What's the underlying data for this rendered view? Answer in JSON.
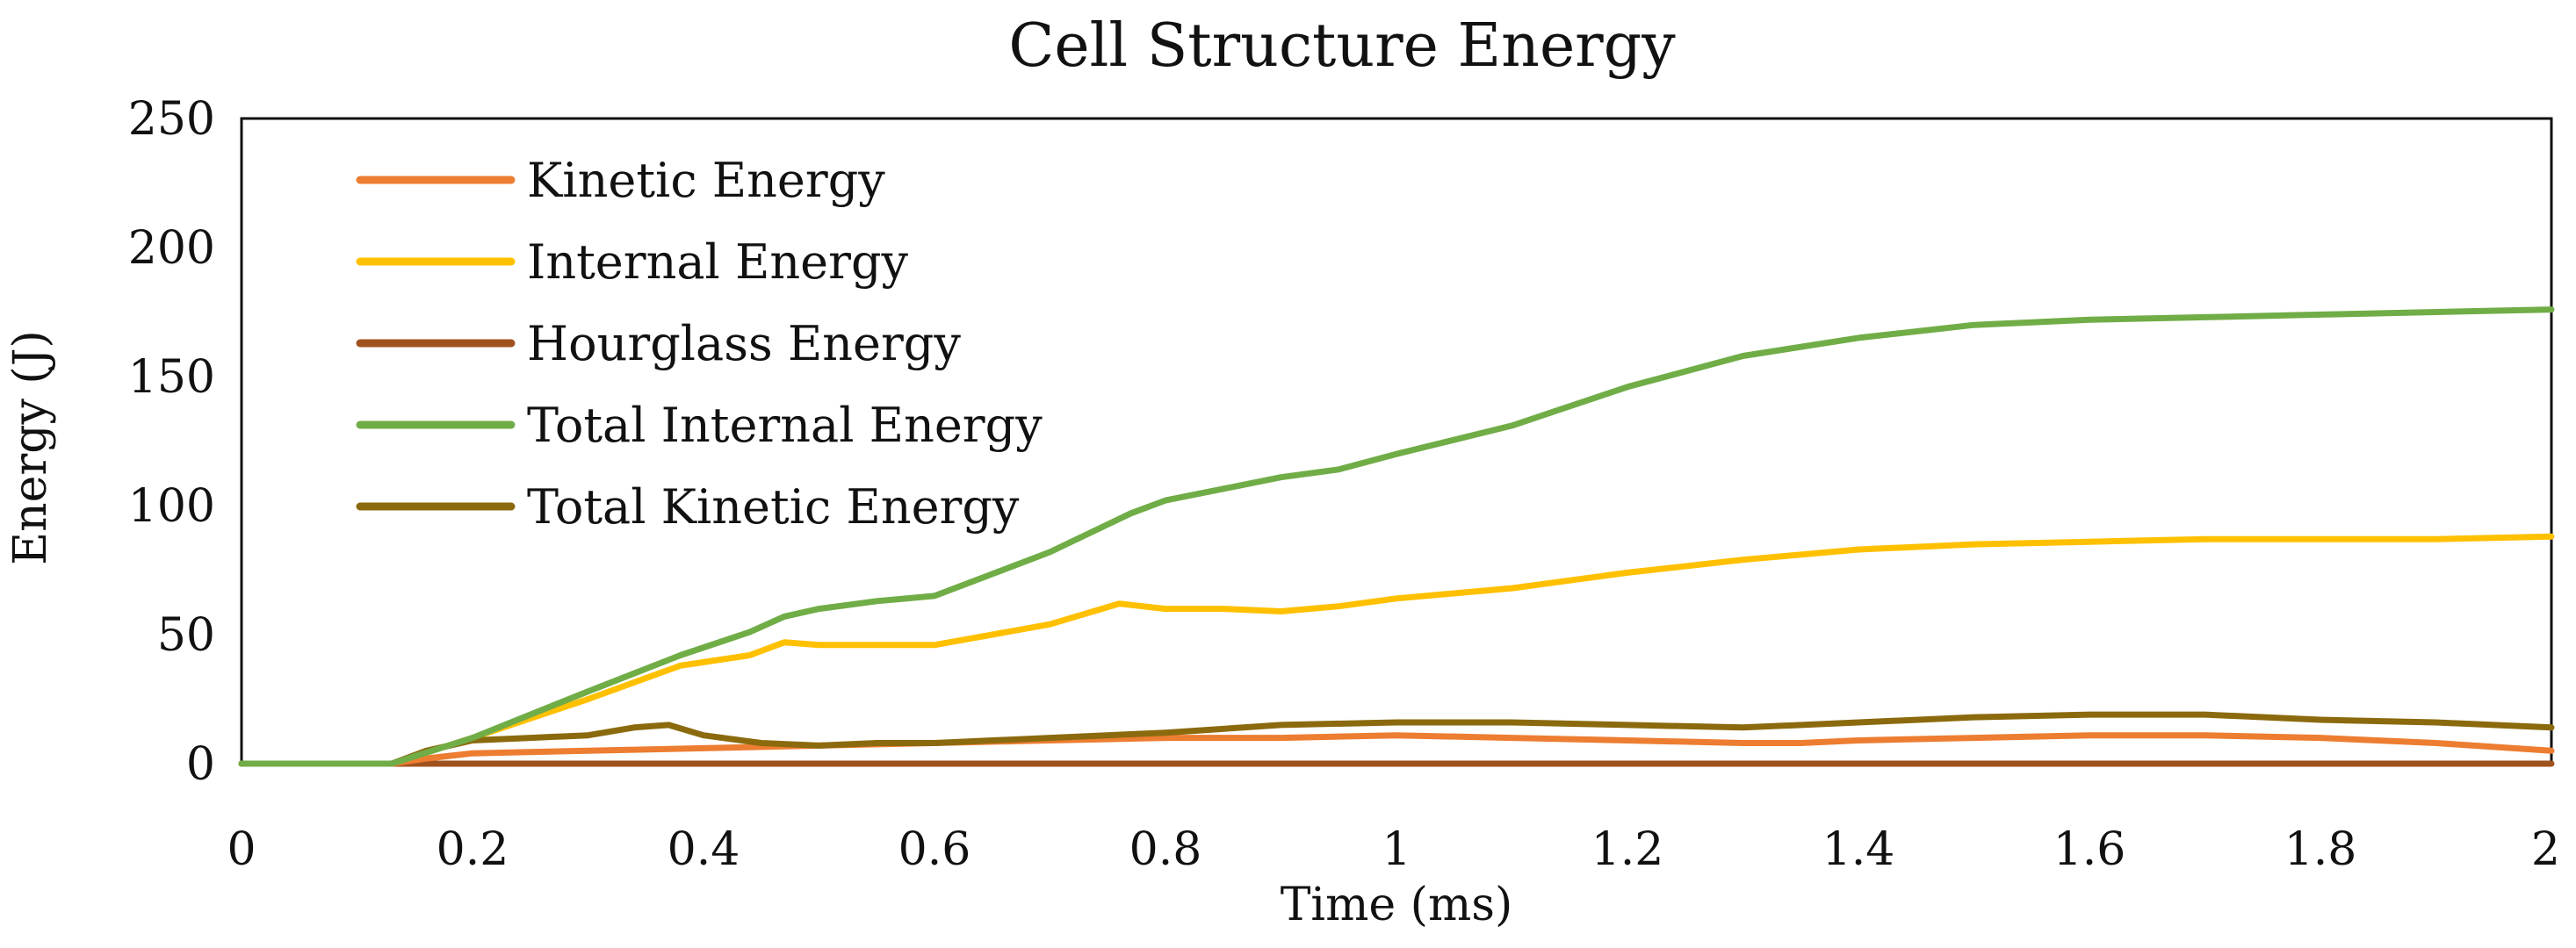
{
  "chart_data": {
    "type": "line",
    "title": "Cell Structure Energy",
    "xlabel": "Time (ms)",
    "ylabel": "Energy (J)",
    "xlim": [
      0,
      2
    ],
    "ylim": [
      0,
      250
    ],
    "x_ticks": [
      "0",
      "0.2",
      "0.4",
      "0.6",
      "0.8",
      "1",
      "1.2",
      "1.4",
      "1.6",
      "1.8",
      "2"
    ],
    "y_ticks": [
      "0",
      "50",
      "100",
      "150",
      "200",
      "250"
    ],
    "legend_position": "top-left",
    "grid": false,
    "series": [
      {
        "name": "Kinetic Energy",
        "color": "#ED7D31",
        "x": [
          0,
          0.13,
          0.16,
          0.2,
          0.3,
          0.4,
          0.5,
          0.6,
          0.7,
          0.8,
          0.9,
          1.0,
          1.1,
          1.2,
          1.3,
          1.35,
          1.4,
          1.5,
          1.6,
          1.65,
          1.7,
          1.8,
          1.9,
          2.0
        ],
        "y": [
          0,
          0,
          2,
          4,
          5,
          6,
          7,
          8,
          9,
          10,
          10,
          11,
          10,
          9,
          8,
          8,
          9,
          10,
          11,
          11,
          11,
          10,
          8,
          5
        ]
      },
      {
        "name": "Internal Energy",
        "color": "#FFC000",
        "x": [
          0,
          0.13,
          0.2,
          0.3,
          0.38,
          0.44,
          0.47,
          0.5,
          0.55,
          0.6,
          0.7,
          0.76,
          0.8,
          0.85,
          0.9,
          0.95,
          1.0,
          1.1,
          1.2,
          1.3,
          1.4,
          1.5,
          1.6,
          1.7,
          1.8,
          1.9,
          2.0
        ],
        "y": [
          0,
          0,
          10,
          25,
          38,
          42,
          47,
          46,
          46,
          46,
          54,
          62,
          60,
          60,
          59,
          61,
          64,
          68,
          74,
          79,
          83,
          85,
          86,
          87,
          87,
          87,
          88
        ]
      },
      {
        "name": "Hourglass Energy",
        "color": "#A0521E",
        "x": [
          0,
          0.5,
          1.0,
          1.5,
          2.0
        ],
        "y": [
          0,
          0,
          0,
          0,
          0
        ]
      },
      {
        "name": "Total Internal Energy",
        "color": "#70AD47",
        "x": [
          0,
          0.13,
          0.2,
          0.3,
          0.38,
          0.44,
          0.47,
          0.5,
          0.55,
          0.6,
          0.7,
          0.77,
          0.8,
          0.9,
          0.95,
          1.0,
          1.1,
          1.2,
          1.3,
          1.4,
          1.5,
          1.6,
          1.7,
          1.8,
          1.9,
          2.0
        ],
        "y": [
          0,
          0,
          10,
          28,
          42,
          51,
          57,
          60,
          63,
          65,
          82,
          97,
          102,
          111,
          114,
          120,
          131,
          146,
          158,
          165,
          170,
          172,
          173,
          174,
          175,
          176
        ]
      },
      {
        "name": "Total Kinetic Energy",
        "color": "#8B6A0E",
        "x": [
          0,
          0.13,
          0.16,
          0.2,
          0.25,
          0.3,
          0.34,
          0.37,
          0.4,
          0.45,
          0.5,
          0.55,
          0.6,
          0.7,
          0.8,
          0.9,
          1.0,
          1.1,
          1.2,
          1.3,
          1.4,
          1.5,
          1.6,
          1.7,
          1.8,
          1.9,
          2.0
        ],
        "y": [
          0,
          0,
          5,
          9,
          10,
          11,
          14,
          15,
          11,
          8,
          7,
          8,
          8,
          10,
          12,
          15,
          16,
          16,
          15,
          14,
          16,
          18,
          19,
          19,
          17,
          16,
          14
        ]
      }
    ]
  }
}
